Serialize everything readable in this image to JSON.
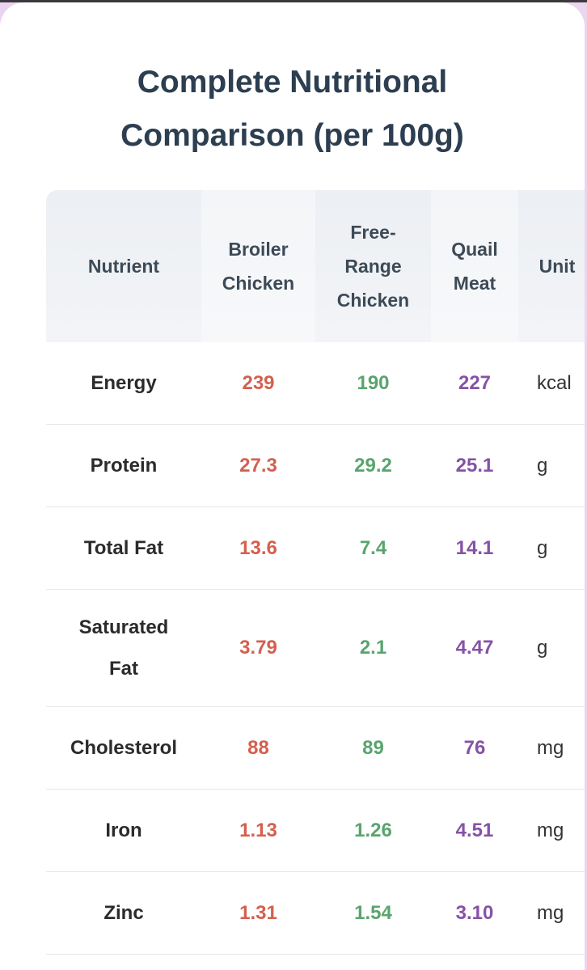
{
  "title_line1": "Complete Nutritional",
  "title_line2": "Comparison (per 100g)",
  "headers": {
    "nutrient": "Nutrient",
    "broiler": [
      "Broiler",
      "Chicken"
    ],
    "free_range": [
      "Free-",
      "Range",
      "Chicken"
    ],
    "quail": [
      "Quail",
      "Meat"
    ],
    "unit": "Unit"
  },
  "rows": [
    {
      "nutrient": [
        "Energy"
      ],
      "broiler": "239",
      "free_range": "190",
      "quail": "227",
      "unit": "kcal"
    },
    {
      "nutrient": [
        "Protein"
      ],
      "broiler": "27.3",
      "free_range": "29.2",
      "quail": "25.1",
      "unit": "g"
    },
    {
      "nutrient": [
        "Total Fat"
      ],
      "broiler": "13.6",
      "free_range": "7.4",
      "quail": "14.1",
      "unit": "g"
    },
    {
      "nutrient": [
        "Saturated",
        "Fat"
      ],
      "broiler": "3.79",
      "free_range": "2.1",
      "quail": "4.47",
      "unit": "g"
    },
    {
      "nutrient": [
        "Cholesterol"
      ],
      "broiler": "88",
      "free_range": "89",
      "quail": "76",
      "unit": "mg"
    },
    {
      "nutrient": [
        "Iron"
      ],
      "broiler": "1.13",
      "free_range": "1.26",
      "quail": "4.51",
      "unit": "mg"
    },
    {
      "nutrient": [
        "Zinc"
      ],
      "broiler": "1.31",
      "free_range": "1.54",
      "quail": "3.10",
      "unit": "mg"
    }
  ],
  "colors": {
    "title": "#2c3e50",
    "broiler": "#d4604f",
    "free_range": "#59a46e",
    "quail": "#8552a6"
  }
}
